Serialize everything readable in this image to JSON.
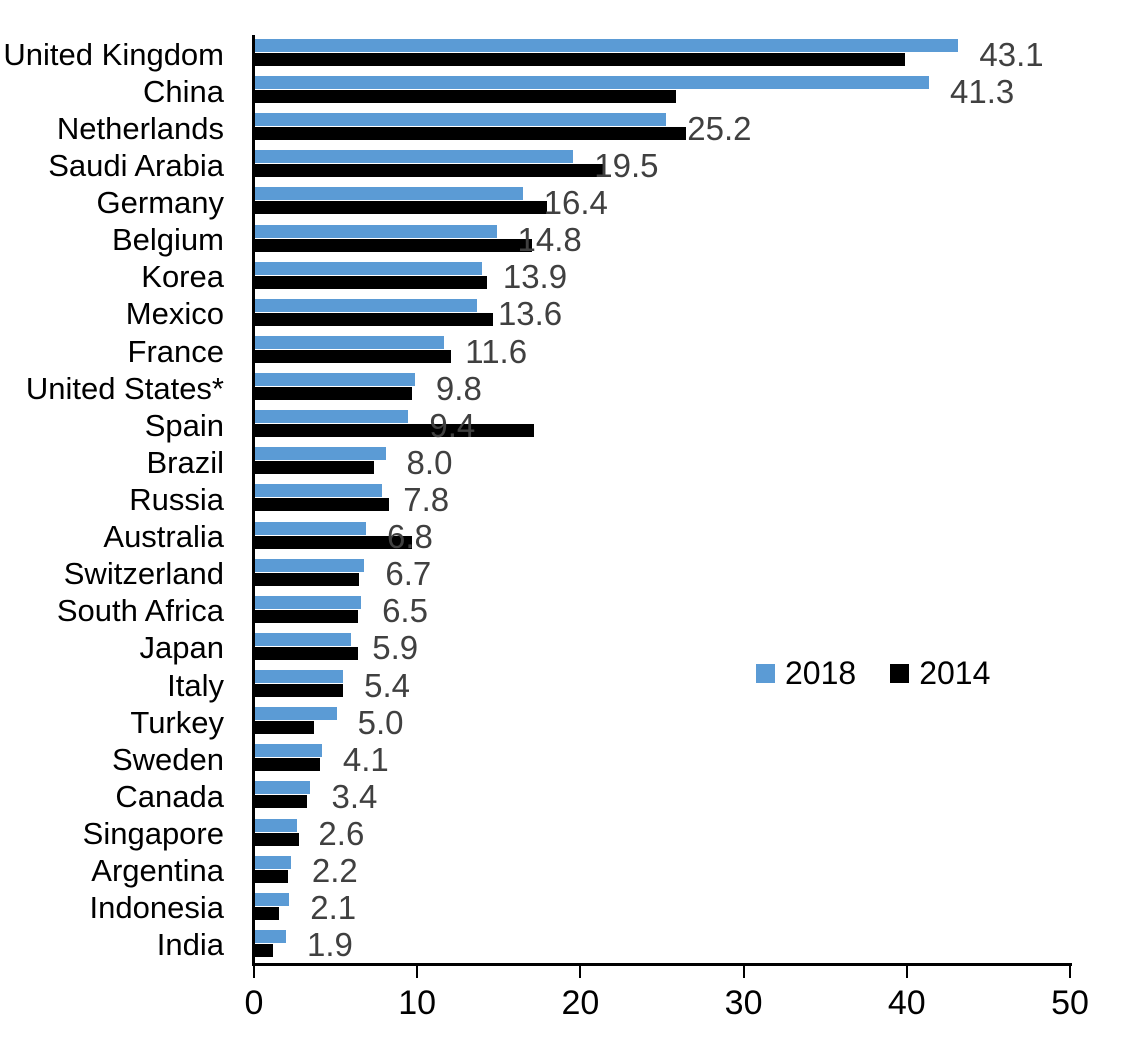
{
  "chart_data": {
    "type": "bar",
    "orientation": "horizontal",
    "title": "",
    "xlabel": "",
    "ylabel": "",
    "xlim": [
      0,
      50
    ],
    "x_ticks": [
      "0",
      "10",
      "20",
      "30",
      "40",
      "50"
    ],
    "grid": false,
    "legend_position": "middle-right",
    "categories": [
      "United Kingdom",
      "China",
      "Netherlands",
      "Saudi Arabia",
      "Germany",
      "Belgium",
      "Korea",
      "Mexico",
      "France",
      "United States*",
      "Spain",
      "Brazil",
      "Russia",
      "Australia",
      "Switzerland",
      "South Africa",
      "Japan",
      "Italy",
      "Turkey",
      "Sweden",
      "Canada",
      "Singapore",
      "Argentina",
      "Indonesia",
      "India"
    ],
    "series": [
      {
        "name": "2018",
        "color": "#5B9BD5",
        "values": [
          43.1,
          41.3,
          25.2,
          19.5,
          16.4,
          14.8,
          13.9,
          13.6,
          11.6,
          9.8,
          9.4,
          8.0,
          7.8,
          6.8,
          6.7,
          6.5,
          5.9,
          5.4,
          5.0,
          4.1,
          3.4,
          2.6,
          2.2,
          2.1,
          1.9
        ],
        "data_labels": [
          "43.1",
          "41.3",
          "25.2",
          "19.5",
          "16.4",
          "14.8",
          "13.9",
          "13.6",
          "11.6",
          "9.8",
          "9.4",
          "8.0",
          "7.8",
          "6.8",
          "6.7",
          "6.5",
          "5.9",
          "5.4",
          "5.0",
          "4.1",
          "3.4",
          "2.6",
          "2.2",
          "2.1",
          "1.9"
        ]
      },
      {
        "name": "2014",
        "color": "#000000",
        "values": [
          39.8,
          25.8,
          26.4,
          21.4,
          17.9,
          17.0,
          14.2,
          14.6,
          12.0,
          9.6,
          17.1,
          7.3,
          8.2,
          9.6,
          6.4,
          6.3,
          6.3,
          5.4,
          3.6,
          4.0,
          3.2,
          2.7,
          2.0,
          1.5,
          1.1
        ]
      }
    ],
    "value_label_color": "#404040"
  }
}
